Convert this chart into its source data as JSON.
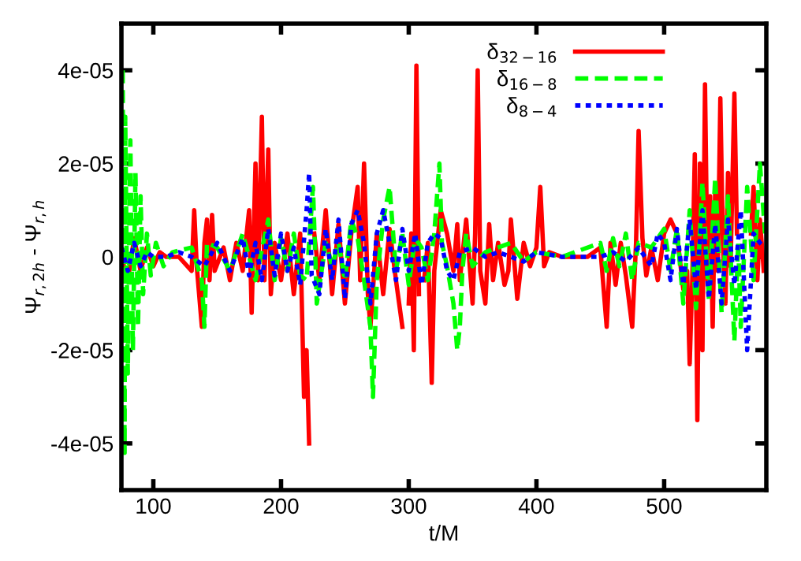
{
  "chart_data": {
    "type": "line",
    "xlabel": "t/M",
    "ylabel": "Ψ$_{r,2h}$ - Ψ$_{r,h}$",
    "xlim": [
      75,
      580
    ],
    "xticks": [
      100,
      200,
      300,
      400,
      500
    ],
    "ylim": [
      -5e-05,
      5e-05
    ],
    "yticks": [
      {
        "value": -4e-05,
        "label": "-4e-05"
      },
      {
        "value": -2e-05,
        "label": "-2e-05"
      },
      0,
      {
        "value": 2e-05,
        "label": "2e-05"
      },
      {
        "value": 4e-05,
        "label": "4e-05"
      }
    ],
    "grid": false,
    "legend": "top right",
    "marker": "none",
    "series": [
      {
        "name": "δ$_{32−16}$",
        "color": "#ff0000",
        "line_style": "solid",
        "x": [
          75,
          80,
          85,
          90,
          95,
          100,
          105,
          110,
          120,
          130,
          132,
          134,
          138,
          140,
          142,
          144,
          146,
          148,
          155,
          160,
          165,
          170,
          175,
          177,
          180,
          182,
          185,
          187,
          190,
          192,
          195,
          200,
          205,
          210,
          215,
          218,
          220,
          222,
          224,
          226,
          230,
          235,
          240,
          245,
          250,
          255,
          260,
          262,
          265,
          268,
          270,
          275,
          280,
          285,
          290,
          295,
          297,
          300,
          302,
          304,
          306,
          308,
          310,
          312,
          315,
          318,
          320,
          325,
          330,
          335,
          338,
          340,
          345,
          350,
          352,
          354,
          356,
          360,
          363,
          366,
          370,
          375,
          378,
          380,
          385,
          390,
          395,
          400,
          403,
          406,
          410,
          420,
          440,
          450,
          455,
          458,
          462,
          466,
          470,
          475,
          478,
          480,
          483,
          486,
          490,
          495,
          500,
          505,
          510,
          515,
          518,
          520,
          522,
          524,
          526,
          528,
          530,
          532,
          534,
          536,
          538,
          540,
          542,
          544,
          546,
          548,
          550,
          552,
          555,
          557,
          560,
          565,
          568,
          570,
          573,
          575,
          578
        ],
        "values": [
          0,
          -5e-06,
          4e-06,
          -3e-06,
          2e-06,
          -2e-06,
          1e-06,
          0,
          0,
          -3e-06,
          1e-05,
          -2e-06,
          -1.5e-05,
          3e-06,
          8e-06,
          -5e-06,
          9e-06,
          -3e-06,
          2e-06,
          -5e-06,
          3e-06,
          -3e-06,
          1e-05,
          -1.2e-05,
          2e-05,
          -5e-06,
          3e-05,
          -5e-06,
          2.3e-05,
          -8e-06,
          3e-06,
          -5e-06,
          5e-06,
          -8e-06,
          5e-06,
          -3e-05,
          -2e-05,
          -4e-05,
          null,
          5e-06,
          -5e-06,
          1e-05,
          -8e-06,
          7e-06,
          -1e-05,
          5e-06,
          1.5e-05,
          -5e-06,
          2e-05,
          -8e-06,
          -1.5e-05,
          5e-06,
          -8e-06,
          6e-06,
          -5e-06,
          -1.5e-05,
          null,
          -1e-05,
          5e-06,
          -2e-05,
          4.1e-05,
          -8e-06,
          null,
          -5e-06,
          3e-06,
          -2.7e-05,
          -3e-06,
          1e-05,
          5e-06,
          -3e-06,
          7e-06,
          -5e-06,
          8e-06,
          -1e-05,
          5e-06,
          4e-05,
          -3e-06,
          -1e-05,
          7e-06,
          -5e-06,
          3e-06,
          -6e-06,
          -3e-06,
          8e-06,
          -9e-06,
          3e-06,
          -2e-06,
          2e-06,
          1.5e-05,
          -2e-06,
          1e-06,
          0,
          0,
          2e-06,
          -1.5e-05,
          3e-06,
          -6e-06,
          3e-06,
          -4e-06,
          -1.5e-05,
          3e-06,
          2.7e-05,
          4e-06,
          -4e-06,
          2e-06,
          -5e-06,
          5e-06,
          8e-06,
          5e-06,
          -7e-06,
          -3e-06,
          -2.3e-05,
          -5e-06,
          2.2e-05,
          -3.5e-05,
          2e-05,
          -2e-05,
          3.7e-05,
          -5e-06,
          1.3e-05,
          -1.5e-05,
          1.5e-05,
          -3e-06,
          3.4e-05,
          3e-06,
          -1e-05,
          1.8e-05,
          -2e-06,
          3.5e-05,
          5e-06,
          null,
          null,
          5e-06,
          1.5e-05,
          -5e-06,
          8e-06,
          -3e-06
        ]
      },
      {
        "name": "δ$_{16−8}$",
        "color": "#00ff00",
        "line_style": "dashed",
        "x": [
          76,
          77.5,
          78,
          80,
          82,
          84,
          86,
          88,
          90,
          92,
          95,
          98,
          102,
          108,
          115,
          130,
          138,
          140,
          142,
          150,
          160,
          170,
          180,
          190,
          195,
          200,
          205,
          210,
          215,
          220,
          225,
          228,
          235,
          240,
          245,
          250,
          255,
          260,
          265,
          270,
          272,
          275,
          280,
          285,
          290,
          295,
          300,
          305,
          310,
          315,
          320,
          324,
          326,
          330,
          335,
          338,
          340,
          342,
          345,
          350,
          360,
          370,
          380,
          390,
          400,
          420,
          450,
          455,
          460,
          465,
          470,
          475,
          480,
          490,
          500,
          505,
          510,
          515,
          520,
          525,
          530,
          535,
          540,
          545,
          550,
          555,
          558,
          560,
          565,
          570,
          575,
          579
        ],
        "values": [
          4e-05,
          -4.2e-05,
          3e-05,
          -2.5e-05,
          2.5e-05,
          -2e-05,
          1.8e-05,
          -1.5e-05,
          1.3e-05,
          -8e-06,
          5e-06,
          -4e-06,
          3e-06,
          -2e-06,
          1e-06,
          2e-06,
          -5e-06,
          -1.5e-05,
          3e-06,
          2e-06,
          -3e-06,
          5e-06,
          -5e-06,
          8e-06,
          -5e-06,
          4e-06,
          -3e-06,
          5e-06,
          -4e-06,
          -5e-06,
          1.5e-05,
          -1e-05,
          3e-06,
          -2e-06,
          3e-06,
          -5e-06,
          8e-06,
          4e-06,
          -5e-06,
          -1.5e-05,
          -3e-05,
          -5e-06,
          8e-06,
          1.5e-05,
          -3e-06,
          5e-06,
          -6e-06,
          4e-06,
          2e-06,
          -5e-06,
          5e-06,
          2e-05,
          3e-06,
          -2e-06,
          -1e-05,
          -2e-05,
          -1.5e-05,
          -3e-06,
          5e-06,
          -2e-06,
          1e-06,
          2e-06,
          3e-06,
          -1e-06,
          1e-06,
          0,
          3e-06,
          -3e-06,
          4e-06,
          -2e-06,
          5e-06,
          -5e-06,
          3e-06,
          2e-06,
          6e-06,
          -3e-06,
          6e-06,
          -1e-05,
          1e-05,
          -1.1e-05,
          1.6e-05,
          -9e-06,
          1.7e-05,
          -1.2e-05,
          1.3e-05,
          -1.8e-05,
          3e-06,
          -1.5e-05,
          1.5e-05,
          -5e-06,
          2e-05,
          5e-06
        ]
      },
      {
        "name": "δ$_{8−4}$",
        "color": "#0000ff",
        "line_style": "dotted",
        "x": [
          75,
          80,
          85,
          90,
          95,
          100,
          110,
          120,
          130,
          140,
          150,
          160,
          170,
          175,
          180,
          185,
          190,
          195,
          200,
          205,
          210,
          215,
          220,
          222,
          224,
          230,
          235,
          240,
          245,
          250,
          255,
          260,
          265,
          270,
          275,
          280,
          285,
          290,
          295,
          300,
          305,
          310,
          315,
          320,
          325,
          330,
          335,
          340,
          350,
          360,
          370,
          380,
          390,
          400,
          420,
          450,
          460,
          470,
          480,
          490,
          495,
          500,
          505,
          510,
          515,
          520,
          525,
          530,
          535,
          540,
          545,
          550,
          555,
          560,
          565,
          570,
          575,
          579
        ],
        "values": [
          2e-06,
          -3e-06,
          3e-06,
          -2e-06,
          1e-06,
          0,
          0,
          1e-06,
          0,
          -2e-06,
          3e-06,
          -3e-06,
          4e-06,
          -4e-06,
          3e-06,
          -5e-06,
          6e-06,
          -4e-06,
          5e-06,
          -3e-06,
          2e-06,
          -6e-06,
          1e-05,
          1.8e-05,
          -4e-06,
          -8e-06,
          6e-06,
          -5e-06,
          8e-06,
          -9e-06,
          7e-06,
          1e-05,
          3e-06,
          -1e-05,
          5e-06,
          1e-05,
          3e-06,
          -5e-06,
          6e-06,
          -3e-06,
          5e-06,
          -6e-06,
          3e-06,
          5e-06,
          4e-06,
          -3e-06,
          -5e-06,
          1e-06,
          2e-06,
          0,
          1e-06,
          0,
          -1e-06,
          1e-06,
          0,
          0,
          1e-06,
          -1e-06,
          2e-06,
          -2e-06,
          5e-06,
          3e-06,
          -5e-06,
          6e-06,
          -6e-06,
          8e-06,
          -7e-06,
          1e-05,
          -9e-06,
          7e-06,
          -1e-05,
          8e-06,
          -6e-06,
          1e-05,
          -2e-05,
          5e-06,
          3e-06,
          2e-06
        ]
      }
    ]
  }
}
